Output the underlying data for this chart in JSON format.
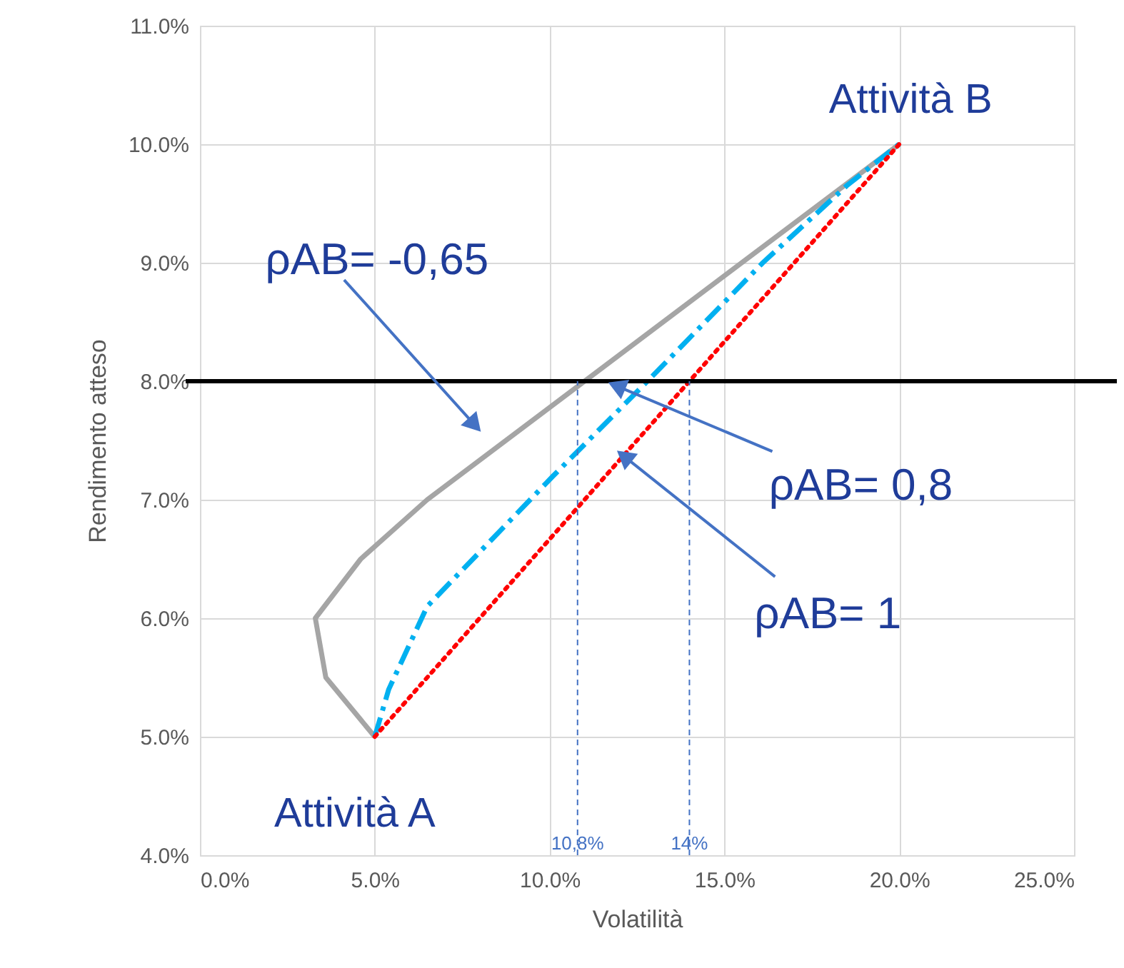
{
  "chart_data": {
    "type": "line",
    "xlabel": "Volatilità",
    "ylabel": "Rendimento atteso",
    "series": [
      {
        "name": null,
        "color": "#a5a5a5",
        "line_style": "solid",
        "x": [
          5.0,
          3.6,
          3.3,
          4.6,
          6.5,
          20.0
        ],
        "values": [
          5.0,
          5.5,
          6.0,
          6.5,
          7.0,
          10.0
        ]
      },
      {
        "name": null,
        "color": "#00b0f0",
        "line_style": "dashed",
        "x": [
          5.0,
          5.4,
          6.5,
          10.1,
          12.8,
          16.1,
          18.5,
          20.0
        ],
        "values": [
          5.0,
          5.4,
          6.1,
          7.2,
          8.0,
          9.0,
          9.65,
          10.0
        ]
      },
      {
        "name": null,
        "color": "#ff0000",
        "line_style": "dotted",
        "x": [
          5.0,
          20.0
        ],
        "values": [
          5.0,
          10.0
        ]
      }
    ],
    "xlim": [
      0,
      25
    ],
    "ylim": [
      4,
      11
    ],
    "xticks": [
      {
        "value": 0,
        "label": "0.0%"
      },
      {
        "value": 5,
        "label": "5.0%"
      },
      {
        "value": 10,
        "label": "10.0%"
      },
      {
        "value": 15,
        "label": "15.0%"
      },
      {
        "value": 20,
        "label": "20.0%"
      },
      {
        "value": 25,
        "label": "25.0%"
      }
    ],
    "yticks": [
      {
        "value": 4,
        "label": "4.0%"
      },
      {
        "value": 5,
        "label": "5.0%"
      },
      {
        "value": 6,
        "label": "6.0%"
      },
      {
        "value": 7,
        "label": "7.0%"
      },
      {
        "value": 8,
        "label": "8.0%"
      },
      {
        "value": 9,
        "label": "9.0%"
      },
      {
        "value": 10,
        "label": "10.0%"
      },
      {
        "value": 11,
        "label": "11.0%"
      }
    ],
    "grid": true,
    "ref_lines": [
      {
        "axis": "y",
        "value": 8,
        "label": null,
        "color": "#000000",
        "line_style": "solid"
      },
      {
        "axis": "x",
        "value": 10.8,
        "label": "10,8%",
        "color": "#4472c4",
        "line_style": "dashed"
      },
      {
        "axis": "x",
        "value": 14,
        "label": "14%",
        "color": "#4472c4",
        "line_style": "dashed"
      }
    ],
    "annotations": [
      {
        "text": "Attività B",
        "x": 20,
        "y": 10
      },
      {
        "text": "ρAB= -0,65",
        "x": 7.8,
        "y": 7.65
      },
      {
        "text": "ρAB= 0,8",
        "x": 12.0,
        "y": 7.95
      },
      {
        "text": "ρAB= 1",
        "x": 12.2,
        "y": 7.35
      },
      {
        "text": "Attività A",
        "x": 5,
        "y": 5
      }
    ]
  }
}
